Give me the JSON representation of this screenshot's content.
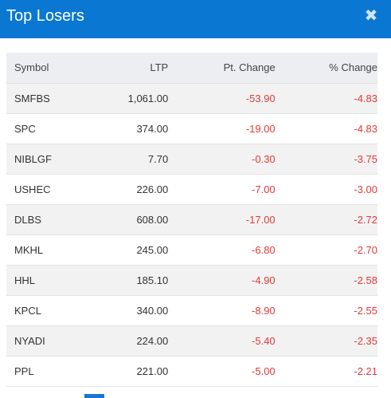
{
  "header": {
    "title": "Top Losers"
  },
  "columns": [
    "Symbol",
    "LTP",
    "Pt. Change",
    "% Change"
  ],
  "rows": [
    {
      "symbol": "SMFBS",
      "ltp": "1,061.00",
      "pt_change": "-53.90",
      "pct_change": "-4.83"
    },
    {
      "symbol": "SPC",
      "ltp": "374.00",
      "pt_change": "-19.00",
      "pct_change": "-4.83"
    },
    {
      "symbol": "NIBLGF",
      "ltp": "7.70",
      "pt_change": "-0.30",
      "pct_change": "-3.75"
    },
    {
      "symbol": "USHEC",
      "ltp": "226.00",
      "pt_change": "-7.00",
      "pct_change": "-3.00"
    },
    {
      "symbol": "DLBS",
      "ltp": "608.00",
      "pt_change": "-17.00",
      "pct_change": "-2.72"
    },
    {
      "symbol": "MKHL",
      "ltp": "245.00",
      "pt_change": "-6.80",
      "pct_change": "-2.70"
    },
    {
      "symbol": "HHL",
      "ltp": "185.10",
      "pt_change": "-4.90",
      "pct_change": "-2.58"
    },
    {
      "symbol": "KPCL",
      "ltp": "340.00",
      "pt_change": "-8.90",
      "pct_change": "-2.55"
    },
    {
      "symbol": "NYADI",
      "ltp": "224.00",
      "pt_change": "-5.40",
      "pct_change": "-2.35"
    },
    {
      "symbol": "PPL",
      "ltp": "221.00",
      "pt_change": "-5.00",
      "pct_change": "-2.21"
    }
  ],
  "icons": {
    "close": "close-icon"
  },
  "colors": {
    "header_bg": "#0a78d2",
    "negative": "#e53935"
  }
}
